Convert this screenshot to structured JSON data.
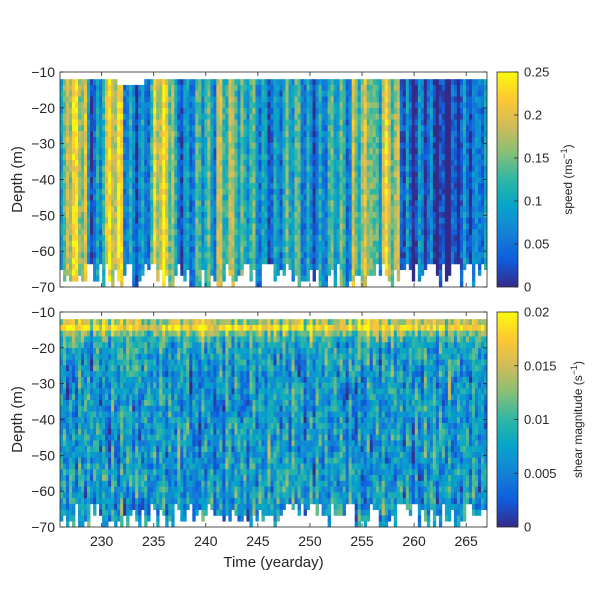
{
  "chart_data": [
    {
      "type": "heatmap",
      "xlabel": "",
      "ylabel": "Depth (m)",
      "xlim": [
        226,
        267
      ],
      "ylim": [
        -70,
        -10
      ],
      "xticks": [
        230,
        235,
        240,
        245,
        250,
        255,
        260,
        265
      ],
      "yticks": [
        -10,
        -20,
        -30,
        -40,
        -50,
        -60,
        -70
      ],
      "colorbar": {
        "label_main": "speed (ms",
        "label_sup": "−1",
        "label_end": ")",
        "range": [
          0,
          0.25
        ],
        "ticks": [
          0,
          0.05,
          0.1,
          0.15,
          0.2,
          0.25
        ],
        "tick_labels": [
          "0",
          "0.05",
          "0.1",
          "0.15",
          "0.2",
          "0.25"
        ]
      },
      "colormap": "parula",
      "data_top_depth": -12,
      "high_zones_yearday": [
        [
          226.5,
          228.5
        ],
        [
          230,
          232
        ],
        [
          235,
          237
        ],
        [
          241,
          243
        ],
        [
          254,
          256
        ],
        [
          257,
          258.5
        ]
      ],
      "low_zone_yearday": [
        259.5,
        266
      ]
    },
    {
      "type": "heatmap",
      "xlabel": "Time (yearday)",
      "ylabel": "Depth (m)",
      "xlim": [
        226,
        267
      ],
      "ylim": [
        -70,
        -10
      ],
      "xticks": [
        230,
        235,
        240,
        245,
        250,
        255,
        260,
        265
      ],
      "yticks": [
        -10,
        -20,
        -30,
        -40,
        -50,
        -60,
        -70
      ],
      "colorbar": {
        "label_main": "shear magnitude (s",
        "label_sup": "−1",
        "label_end": ")",
        "range": [
          0,
          0.02
        ],
        "ticks": [
          0,
          0.005,
          0.01,
          0.015,
          0.02
        ],
        "tick_labels": [
          "0",
          "0.005",
          "0.01",
          "0.015",
          "0.02"
        ]
      },
      "colormap": "parula",
      "data_top_depth": -12
    }
  ],
  "colors": {
    "parula_stops": [
      "#352a87",
      "#0f5cdd",
      "#1481d6",
      "#06a4ca",
      "#2eb7a4",
      "#87bf77",
      "#d1bb59",
      "#fec832",
      "#f9fb0e"
    ]
  }
}
